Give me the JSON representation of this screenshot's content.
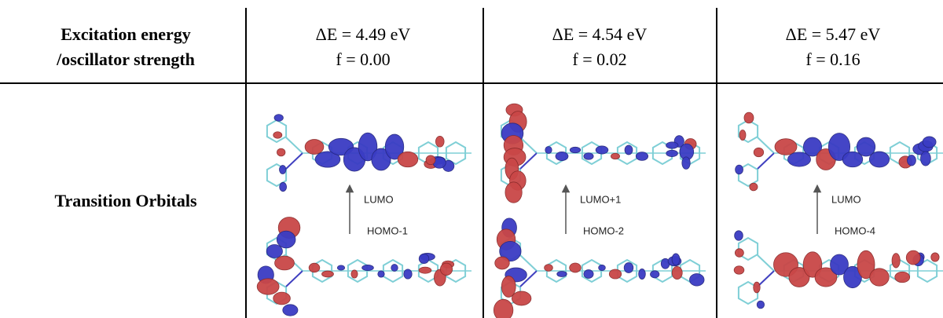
{
  "table": {
    "header": {
      "label": [
        "Excitation energy",
        "/oscillator strength"
      ],
      "columns": [
        {
          "energy": "ΔE = 4.49 eV",
          "strength": "f = 0.00"
        },
        {
          "energy": "ΔE = 4.54 eV",
          "strength": "f = 0.02"
        },
        {
          "energy": "ΔE = 5.47 eV",
          "strength": "f = 0.16"
        }
      ]
    },
    "rows": [
      {
        "label": "Transition Orbitals",
        "cells": [
          {
            "upper": "LUMO",
            "lower": "HOMO-1"
          },
          {
            "upper": "LUMO+1",
            "lower": "HOMO-2"
          },
          {
            "upper": "LUMO",
            "lower": "HOMO-4"
          }
        ]
      }
    ]
  }
}
